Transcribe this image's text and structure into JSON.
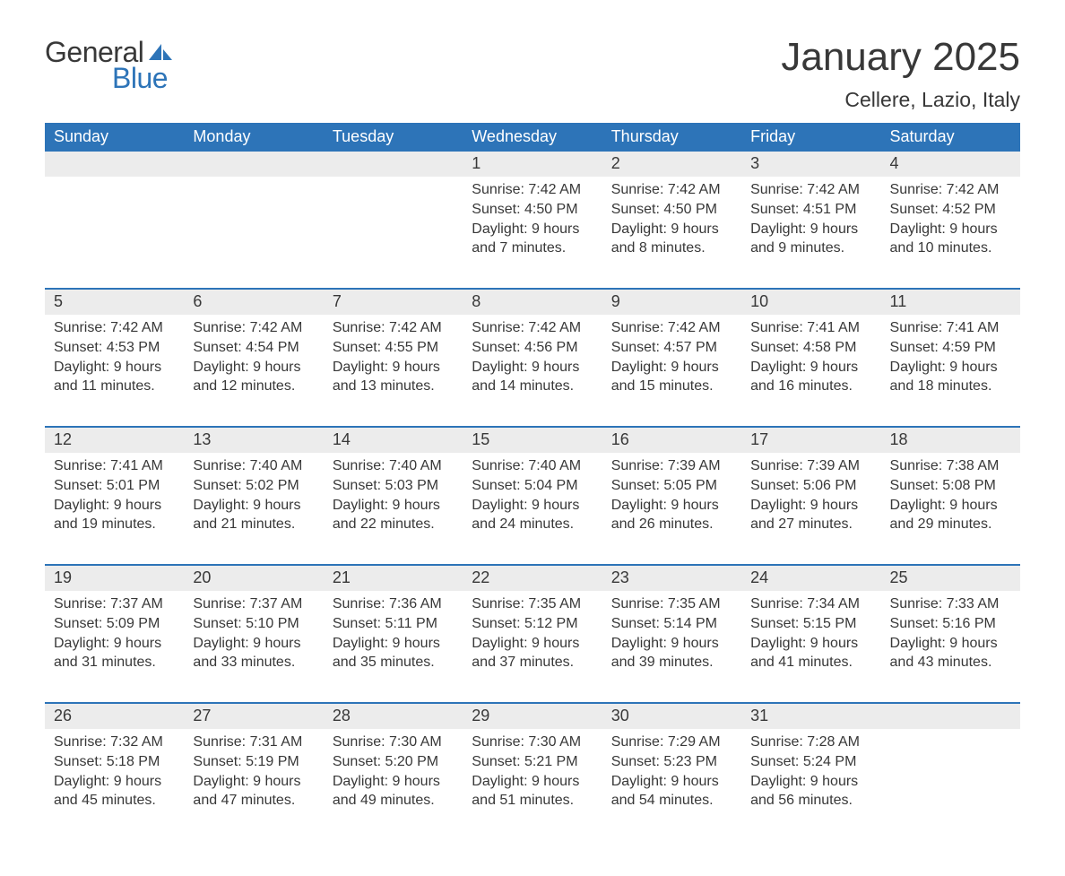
{
  "logo": {
    "general": "General",
    "blue": "Blue",
    "sail_color": "#2d74b8"
  },
  "title": "January 2025",
  "location": "Cellere, Lazio, Italy",
  "colors": {
    "header_bg": "#2d74b8",
    "header_text": "#ffffff",
    "daynum_bg": "#ececec",
    "text": "#383838",
    "row_border": "#2d74b8",
    "page_bg": "#ffffff"
  },
  "fonts": {
    "title_size": 44,
    "location_size": 23,
    "day_header_size": 18,
    "body_size": 16
  },
  "day_headers": [
    "Sunday",
    "Monday",
    "Tuesday",
    "Wednesday",
    "Thursday",
    "Friday",
    "Saturday"
  ],
  "weeks": [
    [
      {
        "n": "",
        "lines": []
      },
      {
        "n": "",
        "lines": []
      },
      {
        "n": "",
        "lines": []
      },
      {
        "n": "1",
        "lines": [
          "Sunrise: 7:42 AM",
          "Sunset: 4:50 PM",
          "Daylight: 9 hours and 7 minutes."
        ]
      },
      {
        "n": "2",
        "lines": [
          "Sunrise: 7:42 AM",
          "Sunset: 4:50 PM",
          "Daylight: 9 hours and 8 minutes."
        ]
      },
      {
        "n": "3",
        "lines": [
          "Sunrise: 7:42 AM",
          "Sunset: 4:51 PM",
          "Daylight: 9 hours and 9 minutes."
        ]
      },
      {
        "n": "4",
        "lines": [
          "Sunrise: 7:42 AM",
          "Sunset: 4:52 PM",
          "Daylight: 9 hours and 10 minutes."
        ]
      }
    ],
    [
      {
        "n": "5",
        "lines": [
          "Sunrise: 7:42 AM",
          "Sunset: 4:53 PM",
          "Daylight: 9 hours and 11 minutes."
        ]
      },
      {
        "n": "6",
        "lines": [
          "Sunrise: 7:42 AM",
          "Sunset: 4:54 PM",
          "Daylight: 9 hours and 12 minutes."
        ]
      },
      {
        "n": "7",
        "lines": [
          "Sunrise: 7:42 AM",
          "Sunset: 4:55 PM",
          "Daylight: 9 hours and 13 minutes."
        ]
      },
      {
        "n": "8",
        "lines": [
          "Sunrise: 7:42 AM",
          "Sunset: 4:56 PM",
          "Daylight: 9 hours and 14 minutes."
        ]
      },
      {
        "n": "9",
        "lines": [
          "Sunrise: 7:42 AM",
          "Sunset: 4:57 PM",
          "Daylight: 9 hours and 15 minutes."
        ]
      },
      {
        "n": "10",
        "lines": [
          "Sunrise: 7:41 AM",
          "Sunset: 4:58 PM",
          "Daylight: 9 hours and 16 minutes."
        ]
      },
      {
        "n": "11",
        "lines": [
          "Sunrise: 7:41 AM",
          "Sunset: 4:59 PM",
          "Daylight: 9 hours and 18 minutes."
        ]
      }
    ],
    [
      {
        "n": "12",
        "lines": [
          "Sunrise: 7:41 AM",
          "Sunset: 5:01 PM",
          "Daylight: 9 hours and 19 minutes."
        ]
      },
      {
        "n": "13",
        "lines": [
          "Sunrise: 7:40 AM",
          "Sunset: 5:02 PM",
          "Daylight: 9 hours and 21 minutes."
        ]
      },
      {
        "n": "14",
        "lines": [
          "Sunrise: 7:40 AM",
          "Sunset: 5:03 PM",
          "Daylight: 9 hours and 22 minutes."
        ]
      },
      {
        "n": "15",
        "lines": [
          "Sunrise: 7:40 AM",
          "Sunset: 5:04 PM",
          "Daylight: 9 hours and 24 minutes."
        ]
      },
      {
        "n": "16",
        "lines": [
          "Sunrise: 7:39 AM",
          "Sunset: 5:05 PM",
          "Daylight: 9 hours and 26 minutes."
        ]
      },
      {
        "n": "17",
        "lines": [
          "Sunrise: 7:39 AM",
          "Sunset: 5:06 PM",
          "Daylight: 9 hours and 27 minutes."
        ]
      },
      {
        "n": "18",
        "lines": [
          "Sunrise: 7:38 AM",
          "Sunset: 5:08 PM",
          "Daylight: 9 hours and 29 minutes."
        ]
      }
    ],
    [
      {
        "n": "19",
        "lines": [
          "Sunrise: 7:37 AM",
          "Sunset: 5:09 PM",
          "Daylight: 9 hours and 31 minutes."
        ]
      },
      {
        "n": "20",
        "lines": [
          "Sunrise: 7:37 AM",
          "Sunset: 5:10 PM",
          "Daylight: 9 hours and 33 minutes."
        ]
      },
      {
        "n": "21",
        "lines": [
          "Sunrise: 7:36 AM",
          "Sunset: 5:11 PM",
          "Daylight: 9 hours and 35 minutes."
        ]
      },
      {
        "n": "22",
        "lines": [
          "Sunrise: 7:35 AM",
          "Sunset: 5:12 PM",
          "Daylight: 9 hours and 37 minutes."
        ]
      },
      {
        "n": "23",
        "lines": [
          "Sunrise: 7:35 AM",
          "Sunset: 5:14 PM",
          "Daylight: 9 hours and 39 minutes."
        ]
      },
      {
        "n": "24",
        "lines": [
          "Sunrise: 7:34 AM",
          "Sunset: 5:15 PM",
          "Daylight: 9 hours and 41 minutes."
        ]
      },
      {
        "n": "25",
        "lines": [
          "Sunrise: 7:33 AM",
          "Sunset: 5:16 PM",
          "Daylight: 9 hours and 43 minutes."
        ]
      }
    ],
    [
      {
        "n": "26",
        "lines": [
          "Sunrise: 7:32 AM",
          "Sunset: 5:18 PM",
          "Daylight: 9 hours and 45 minutes."
        ]
      },
      {
        "n": "27",
        "lines": [
          "Sunrise: 7:31 AM",
          "Sunset: 5:19 PM",
          "Daylight: 9 hours and 47 minutes."
        ]
      },
      {
        "n": "28",
        "lines": [
          "Sunrise: 7:30 AM",
          "Sunset: 5:20 PM",
          "Daylight: 9 hours and 49 minutes."
        ]
      },
      {
        "n": "29",
        "lines": [
          "Sunrise: 7:30 AM",
          "Sunset: 5:21 PM",
          "Daylight: 9 hours and 51 minutes."
        ]
      },
      {
        "n": "30",
        "lines": [
          "Sunrise: 7:29 AM",
          "Sunset: 5:23 PM",
          "Daylight: 9 hours and 54 minutes."
        ]
      },
      {
        "n": "31",
        "lines": [
          "Sunrise: 7:28 AM",
          "Sunset: 5:24 PM",
          "Daylight: 9 hours and 56 minutes."
        ]
      },
      {
        "n": "",
        "lines": []
      }
    ]
  ]
}
